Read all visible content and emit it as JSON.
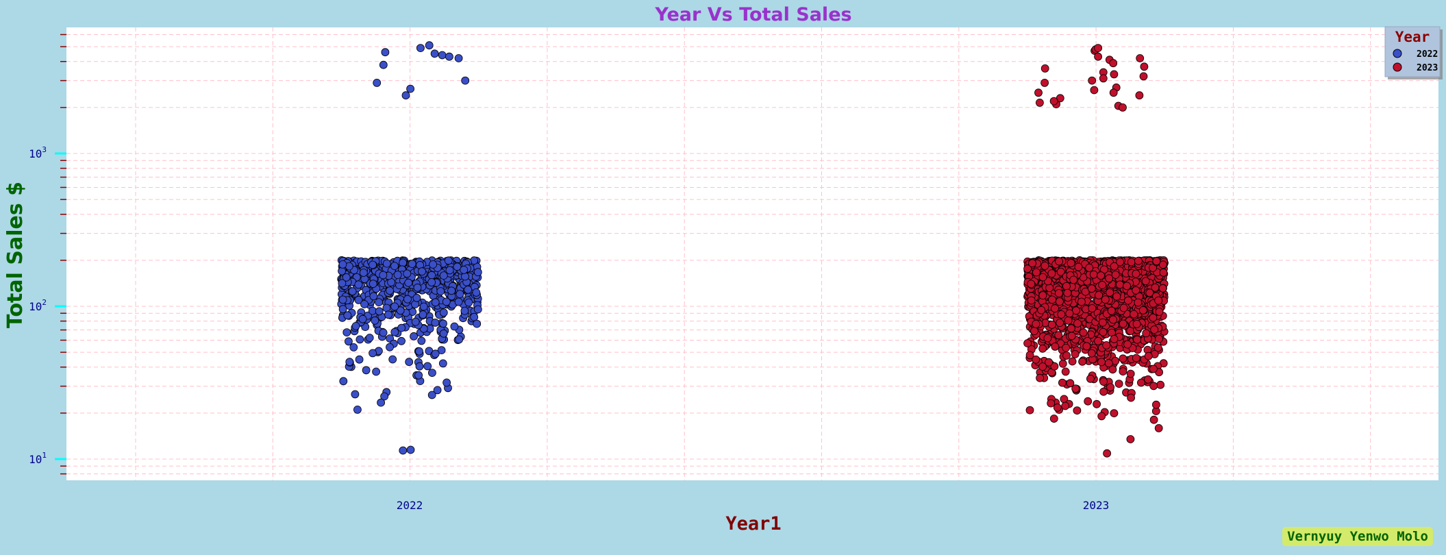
{
  "chart_data": {
    "type": "scatter",
    "title": "Year Vs Total Sales",
    "xlabel": "Year1",
    "ylabel": "Total Sales $",
    "yscale": "log",
    "ylim": [
      7.5,
      6500
    ],
    "y_major_ticks": [
      {
        "value": 10,
        "base": "10",
        "exp": "1"
      },
      {
        "value": 100,
        "base": "10",
        "exp": "2"
      },
      {
        "value": 1000,
        "base": "10",
        "exp": "3"
      }
    ],
    "categories": [
      "2022",
      "2023"
    ],
    "grid": true,
    "legend": {
      "title": "Year",
      "position": "top-right"
    },
    "jitter": "strip",
    "series": [
      {
        "name": "2022",
        "color": "#3a4fc8",
        "bulk_range": [
          10,
          200
        ],
        "bulk_count": 700,
        "high_values": [
          4400,
          4500,
          4900,
          5100,
          4300,
          3800,
          4600,
          4200,
          2900,
          3000,
          2400,
          2650
        ]
      },
      {
        "name": "2023",
        "color": "#c0102c",
        "bulk_range": [
          10,
          200
        ],
        "bulk_count": 2200,
        "high_values": [
          2700,
          2500,
          2100,
          3000,
          3300,
          3700,
          4100,
          4700,
          3200,
          3400,
          2400,
          4300,
          3100,
          2900,
          2050,
          4800,
          4200,
          3600,
          2600,
          2300,
          2500,
          2200,
          4900,
          3900,
          2000,
          2150
        ]
      }
    ]
  },
  "watermark": "Vernyuy Yenwo Molo"
}
